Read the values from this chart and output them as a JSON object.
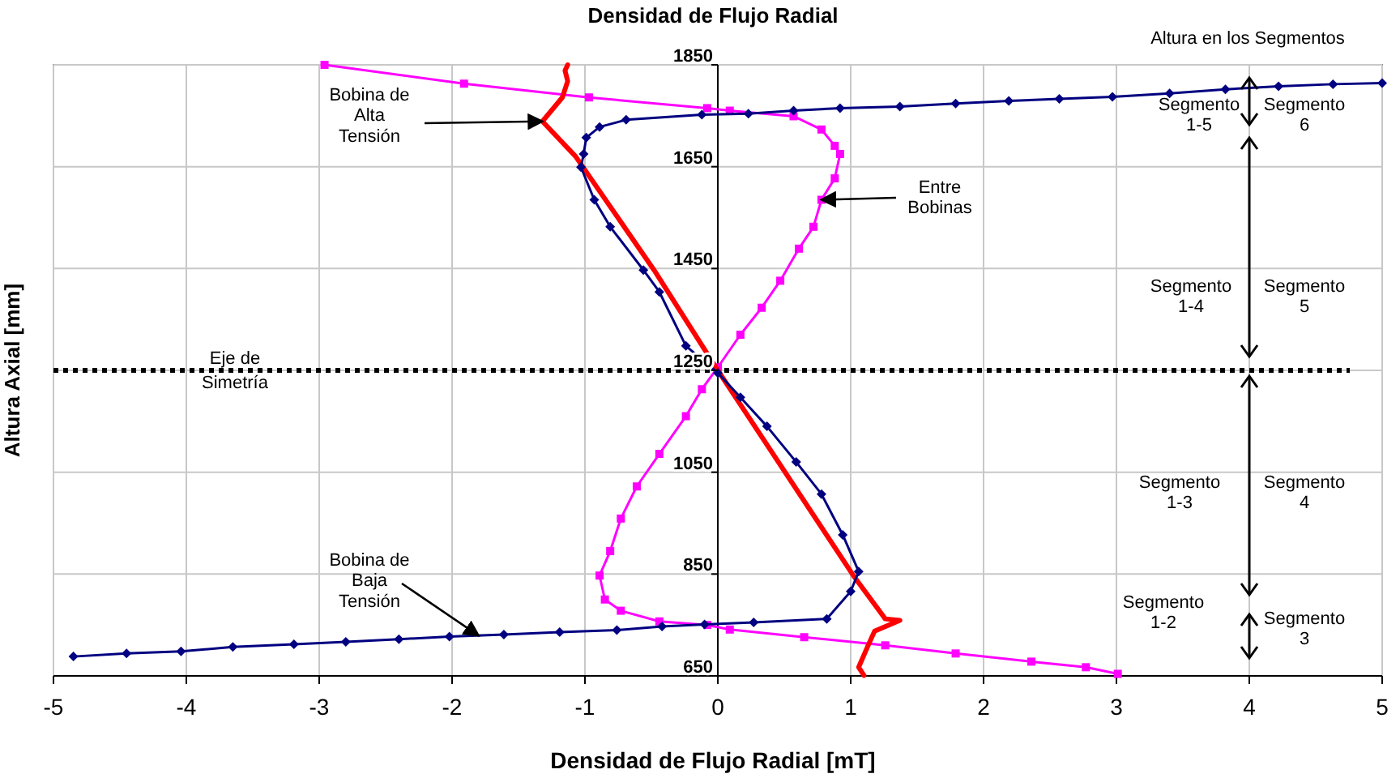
{
  "chart_data": {
    "type": "line",
    "title": "Densidad de Flujo Radial",
    "xlabel": "Densidad de Flujo Radial [mT]",
    "ylabel": "Altura Axial [mm]",
    "xlim": [
      -5,
      5
    ],
    "xticks": [
      -5,
      -4,
      -3,
      -2,
      -1,
      0,
      1,
      2,
      3,
      4,
      5
    ],
    "ylim": [
      650,
      1850
    ],
    "yticks": [
      650,
      850,
      1050,
      1250,
      1450,
      1650,
      1850
    ],
    "grid": true,
    "line_style": "solid",
    "series": [
      {
        "color": "#000080",
        "marker": "diamond",
        "x": [
          -4.85,
          -4.45,
          -4.04,
          -3.65,
          -3.19,
          -2.8,
          -2.4,
          -2.02,
          -1.61,
          -1.19,
          -0.76,
          -0.42,
          -0.1,
          0.27,
          0.82,
          1.0,
          1.06,
          0.94,
          0.78,
          0.59,
          0.37,
          0.17,
          0,
          -0.24,
          -0.44,
          -0.56,
          -0.81,
          -0.93,
          -1.03,
          -1.01,
          -0.99,
          -0.89,
          -0.69,
          -0.12,
          0.23,
          0.57,
          0.92,
          1.37,
          1.79,
          2.19,
          2.57,
          2.97,
          3.4,
          3.82,
          4.22,
          4.63,
          5.0
        ],
        "values": [
          688,
          694,
          698,
          707,
          712,
          717,
          722,
          727,
          731,
          736,
          740,
          747,
          751,
          755,
          762,
          816,
          855,
          927,
          1007,
          1070,
          1140,
          1197,
          1245,
          1298,
          1404,
          1447,
          1532,
          1585,
          1649,
          1675,
          1707,
          1728,
          1742,
          1752,
          1754,
          1760,
          1765,
          1768,
          1774,
          1779,
          1783,
          1787,
          1794,
          1802,
          1808,
          1812,
          1814
        ]
      },
      {
        "color": "#ff0000",
        "marker": "none",
        "x": [
          1.1,
          1.06,
          1.14,
          1.18,
          1.37,
          1.26,
          1.02,
          0,
          -0.48,
          -1.07,
          -1.32,
          -1.17,
          -1.13,
          -1.15,
          -1.13
        ],
        "values": [
          651,
          667,
          715,
          738,
          759,
          762,
          847,
          1250,
          1447,
          1670,
          1739,
          1786,
          1818,
          1839,
          1850
        ]
      },
      {
        "color": "#ff00ff",
        "marker": "square",
        "x": [
          -2.96,
          -1.91,
          -0.97,
          -0.08,
          0.09,
          0.57,
          0.78,
          0.88,
          0.92,
          0.88,
          0.78,
          0.72,
          0.61,
          0.47,
          0.33,
          0.17,
          0,
          -0.12,
          -0.24,
          -0.44,
          -0.61,
          -0.73,
          -0.81,
          -0.89,
          -0.85,
          -0.73,
          -0.44,
          -0.08,
          0.09,
          0.65,
          1.26,
          1.79,
          2.36,
          2.77,
          3.01
        ],
        "values": [
          1850,
          1813,
          1786,
          1765,
          1760,
          1749,
          1723,
          1691,
          1675,
          1627,
          1585,
          1532,
          1489,
          1426,
          1373,
          1320,
          1256,
          1213,
          1160,
          1086,
          1022,
          959,
          895,
          847,
          800,
          778,
          757,
          750,
          741,
          726,
          710,
          694,
          678,
          667,
          654
        ]
      }
    ],
    "ref_lines": [
      {
        "axis": "y",
        "value": 1250,
        "label": "Eje de\nSimetría",
        "color": "#000000",
        "line_style": "dotted"
      }
    ],
    "annotations": [
      "Altura en los Segmentos",
      {
        "text": "Bobina de\nAlta\nTensión",
        "x": -1.32,
        "y": 1739
      },
      {
        "text": "Entre\nBobinas",
        "x": 0.78,
        "y": 1585
      },
      {
        "text": "Bobina de\nBaja\nTensión",
        "x": -1.8,
        "y": 729
      },
      "Segmento\n1-5",
      "Segmento\n6",
      "Segmento\n1-4",
      "Segmento\n5",
      "Segmento\n1-3",
      "Segmento\n4",
      "Segmento\n1-2",
      "Segmento\n3"
    ]
  }
}
